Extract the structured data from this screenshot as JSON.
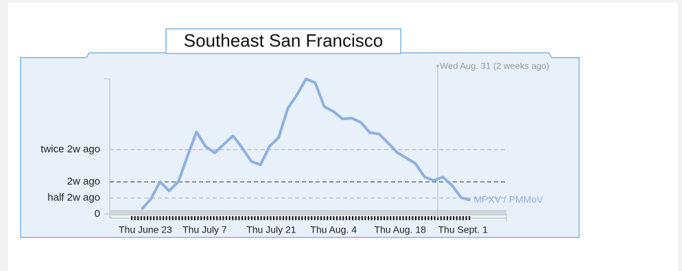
{
  "chart_data": {
    "type": "line",
    "title": "Southeast San Francisco",
    "annotation": "Wed Aug. 31 (2 weeks ago)",
    "categories": [
      "Thu June 23",
      null,
      null,
      null,
      null,
      null,
      null,
      "Thu July 7",
      null,
      null,
      null,
      null,
      null,
      null,
      "Thu July 21",
      null,
      null,
      null,
      null,
      null,
      null,
      "Thu Aug. 4",
      null,
      null,
      null,
      null,
      null,
      null,
      "Thu Aug. 18",
      null,
      null,
      null,
      null,
      null,
      null,
      "Thu Sept. 1",
      null,
      null,
      null
    ],
    "series": [
      {
        "name": "MPXV / PMMoV",
        "color": "#8fb0e0",
        "values": [
          null,
          null,
          0.15,
          0.47,
          1.0,
          0.72,
          1.0,
          1.79,
          2.55,
          2.1,
          1.9,
          2.17,
          2.43,
          2.06,
          1.64,
          1.53,
          2.1,
          2.38,
          3.28,
          3.7,
          4.2,
          4.08,
          3.34,
          3.19,
          2.96,
          2.98,
          2.85,
          2.53,
          2.49,
          2.21,
          1.91,
          1.74,
          1.57,
          1.15,
          1.04,
          1.15,
          0.89,
          0.51,
          0.43
        ]
      }
    ],
    "ylim": [
      0,
      4.2
    ],
    "yticks": [
      {
        "value": 0,
        "label": "0"
      },
      {
        "value": 0.5,
        "label": "half 2w ago"
      },
      {
        "value": 1,
        "label": "2w ago"
      },
      {
        "value": 2,
        "label": "twice 2w ago"
      }
    ]
  }
}
